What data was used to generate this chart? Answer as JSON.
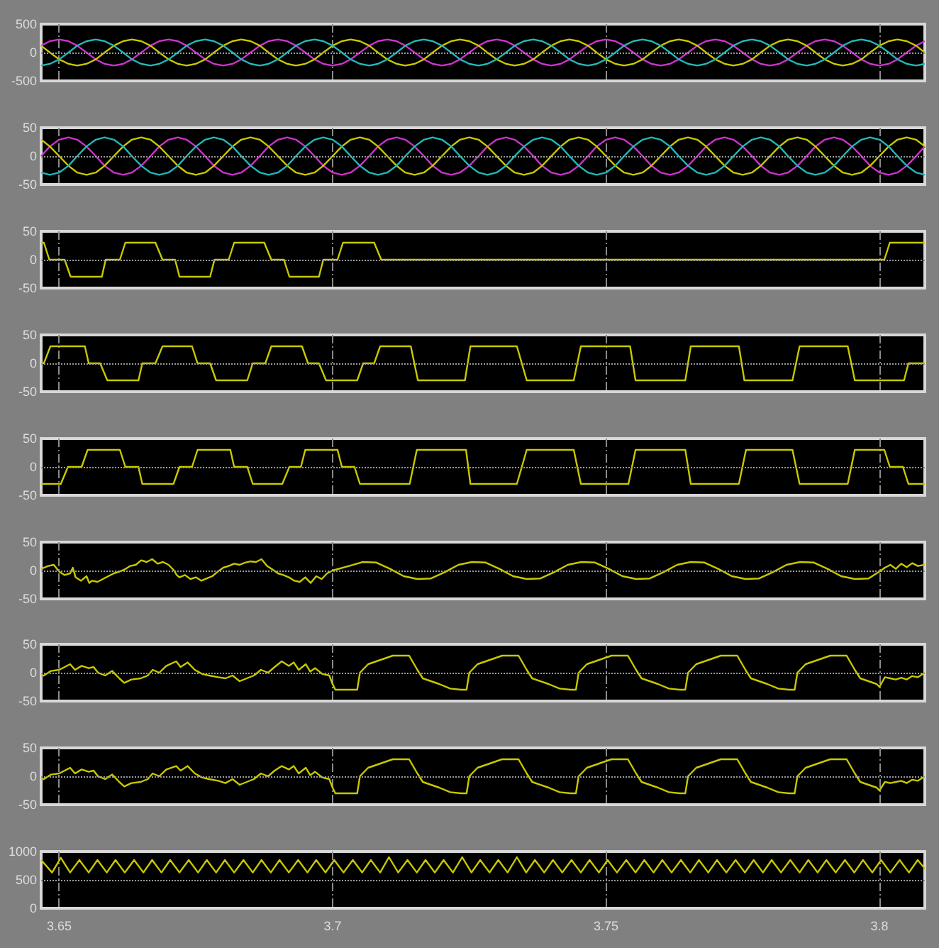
{
  "chart_data": [
    {
      "type": "line",
      "xlim": [
        3.6467,
        3.8083
      ],
      "xticks": [
        3.65,
        3.7,
        3.75,
        3.8
      ],
      "ylim": [
        -500,
        500
      ],
      "yticks": [
        -500,
        0,
        500
      ],
      "grid": "x",
      "tick_labels": "y",
      "ref_lines": [
        {
          "axis": "y",
          "value": 0,
          "color": "#9a9a9a",
          "line_style": "dotted"
        }
      ],
      "x": [
        3.6467,
        3.6483,
        3.65,
        3.6517,
        3.6533,
        3.655,
        3.6567,
        3.6583,
        3.66,
        3.6617,
        3.6633,
        3.665,
        3.6667,
        3.6683,
        3.67,
        3.6717,
        3.6733,
        3.675,
        3.6767,
        3.6783,
        3.68,
        3.6817,
        3.6833,
        3.685,
        3.6867,
        3.6883,
        3.69,
        3.6917,
        3.6933,
        3.695,
        3.6967,
        3.6983,
        3.7,
        3.7017,
        3.7033,
        3.705,
        3.7067,
        3.7083,
        3.71,
        3.7117,
        3.7133,
        3.715,
        3.7167,
        3.7183,
        3.72,
        3.7217,
        3.7233,
        3.725,
        3.7267,
        3.7283,
        3.73,
        3.7317,
        3.7333,
        3.735,
        3.7367,
        3.7383,
        3.74,
        3.7417,
        3.7433,
        3.745,
        3.7467,
        3.7483,
        3.75,
        3.7517,
        3.7533,
        3.755,
        3.7567,
        3.7583,
        3.76,
        3.7617,
        3.7633,
        3.765,
        3.7667,
        3.7683,
        3.77,
        3.7717,
        3.7733,
        3.775,
        3.7767,
        3.7783,
        3.78,
        3.7817,
        3.7833,
        3.785,
        3.7867,
        3.7883,
        3.79,
        3.7917,
        3.7933,
        3.795,
        3.7967,
        3.7983,
        3.8,
        3.8017,
        3.8033,
        3.805,
        3.8067,
        3.8083
      ],
      "series": [
        {
          "color": "#cc33cc",
          "values": [
            120,
            200,
            230,
            200,
            120,
            0,
            -120,
            -200,
            -230,
            -200,
            -120,
            0,
            120,
            200,
            230,
            200,
            120,
            0,
            -120,
            -200,
            -230,
            -200,
            -120,
            0,
            120,
            200,
            230,
            200,
            120,
            0,
            -120,
            -200,
            -230,
            -200,
            -120,
            0,
            120,
            200,
            230,
            200,
            120,
            0,
            -120,
            -200,
            -230,
            -200,
            -120,
            0,
            120,
            200,
            230,
            200,
            120,
            0,
            -120,
            -200,
            -230,
            -200,
            -120,
            0,
            120,
            200,
            230,
            200,
            120,
            0,
            -120,
            -200,
            -230,
            -200,
            -120,
            0,
            120,
            200,
            230,
            200,
            120,
            0,
            -120,
            -200,
            -230,
            -200,
            -120,
            0,
            120,
            200,
            230,
            200,
            120,
            0,
            -120,
            -200,
            -230,
            -200,
            -120,
            0,
            120,
            200
          ]
        },
        {
          "color": "#c8c800",
          "values": [
            120,
            0,
            -120,
            -200,
            -230,
            -200,
            -120,
            0,
            120,
            200,
            230,
            200,
            120,
            0,
            -120,
            -200,
            -230,
            -200,
            -120,
            0,
            120,
            200,
            230,
            200,
            120,
            0,
            -120,
            -200,
            -230,
            -200,
            -120,
            0,
            120,
            200,
            230,
            200,
            120,
            0,
            -120,
            -200,
            -230,
            -200,
            -120,
            0,
            120,
            200,
            230,
            200,
            120,
            0,
            -120,
            -200,
            -230,
            -200,
            -120,
            0,
            120,
            200,
            230,
            200,
            120,
            0,
            -120,
            -200,
            -230,
            -200,
            -120,
            0,
            120,
            200,
            230,
            200,
            120,
            0,
            -120,
            -200,
            -230,
            -200,
            -120,
            0,
            120,
            200,
            230,
            200,
            120,
            0,
            -120,
            -200,
            -230,
            -200,
            -120,
            0,
            120,
            200,
            230,
            200,
            120,
            0
          ]
        },
        {
          "color": "#22b8b8",
          "values": [
            -230,
            -200,
            -120,
            0,
            120,
            200,
            230,
            200,
            120,
            0,
            -120,
            -200,
            -230,
            -200,
            -120,
            0,
            120,
            200,
            230,
            200,
            120,
            0,
            -120,
            -200,
            -230,
            -200,
            -120,
            0,
            120,
            200,
            230,
            200,
            120,
            0,
            -120,
            -200,
            -230,
            -200,
            -120,
            0,
            120,
            200,
            230,
            200,
            120,
            0,
            -120,
            -200,
            -230,
            -200,
            -120,
            0,
            120,
            200,
            230,
            200,
            120,
            0,
            -120,
            -200,
            -230,
            -200,
            -120,
            0,
            120,
            200,
            230,
            200,
            120,
            0,
            -120,
            -200,
            -230,
            -200,
            -120,
            0,
            120,
            200,
            230,
            200,
            120,
            0,
            -120,
            -200,
            -230,
            -200,
            -120,
            0,
            120,
            200,
            230,
            200,
            120,
            0,
            -120,
            -200,
            -230,
            -200
          ]
        }
      ]
    },
    {
      "type": "line",
      "xlim": [
        3.6467,
        3.8083
      ],
      "xticks": [
        3.65,
        3.7,
        3.75,
        3.8
      ],
      "ylim": [
        -50,
        50
      ],
      "yticks": [
        -50,
        0,
        50
      ],
      "grid": "x",
      "tick_labels": "y",
      "ref_lines": [
        {
          "axis": "y",
          "value": 0,
          "color": "#9a9a9a",
          "line_style": "dotted"
        }
      ],
      "x": [
        3.6467,
        3.6483,
        3.65,
        3.6517,
        3.6533,
        3.655,
        3.6567,
        3.6583,
        3.66,
        3.6617,
        3.6633,
        3.665,
        3.6667,
        3.6683,
        3.67,
        3.6717,
        3.6733,
        3.675,
        3.6767,
        3.6783,
        3.68,
        3.6817,
        3.6833,
        3.685,
        3.6867,
        3.6883,
        3.69,
        3.6917,
        3.6933,
        3.695,
        3.6967,
        3.6983,
        3.7,
        3.7017,
        3.7033,
        3.705,
        3.7067,
        3.7083,
        3.71,
        3.7117,
        3.7133,
        3.715,
        3.7167,
        3.7183,
        3.72,
        3.7217,
        3.7233,
        3.725,
        3.7267,
        3.7283,
        3.73,
        3.7317,
        3.7333,
        3.735,
        3.7367,
        3.7383,
        3.74,
        3.7417,
        3.7433,
        3.745,
        3.7467,
        3.7483,
        3.75,
        3.7517,
        3.7533,
        3.755,
        3.7567,
        3.7583,
        3.76,
        3.7617,
        3.7633,
        3.765,
        3.7667,
        3.7683,
        3.77,
        3.7717,
        3.7733,
        3.775,
        3.7767,
        3.7783,
        3.78,
        3.7817,
        3.7833,
        3.785,
        3.7867,
        3.7883,
        3.79,
        3.7917,
        3.7933,
        3.795,
        3.7967,
        3.7983,
        3.8,
        3.8017,
        3.8033,
        3.805,
        3.8067,
        3.8083
      ],
      "series": [
        {
          "color": "#cc33cc",
          "values": [
            0,
            17,
            29,
            33,
            29,
            17,
            0,
            -17,
            -29,
            -33,
            -29,
            -17,
            0,
            17,
            29,
            33,
            29,
            17,
            0,
            -17,
            -29,
            -33,
            -29,
            -17,
            0,
            17,
            29,
            33,
            29,
            17,
            0,
            -17,
            -29,
            -33,
            -29,
            -17,
            0,
            17,
            29,
            33,
            29,
            17,
            0,
            -17,
            -29,
            -33,
            -29,
            -17,
            0,
            17,
            29,
            33,
            29,
            17,
            0,
            -17,
            -29,
            -33,
            -29,
            -17,
            0,
            17,
            29,
            33,
            29,
            17,
            0,
            -17,
            -29,
            -33,
            -29,
            -17,
            0,
            17,
            29,
            33,
            29,
            17,
            0,
            -17,
            -29,
            -33,
            -29,
            -17,
            0,
            17,
            29,
            33,
            29,
            17,
            0,
            -17,
            -29,
            -33,
            -29,
            -17,
            0,
            17
          ]
        },
        {
          "color": "#c8c800",
          "values": [
            29,
            17,
            0,
            -17,
            -29,
            -33,
            -29,
            -17,
            0,
            17,
            29,
            33,
            29,
            17,
            0,
            -17,
            -29,
            -33,
            -29,
            -17,
            0,
            17,
            29,
            33,
            29,
            17,
            0,
            -17,
            -29,
            -33,
            -29,
            -17,
            0,
            17,
            29,
            33,
            29,
            17,
            0,
            -17,
            -29,
            -33,
            -29,
            -17,
            0,
            17,
            29,
            33,
            29,
            17,
            0,
            -17,
            -29,
            -33,
            -29,
            -17,
            0,
            17,
            29,
            33,
            29,
            17,
            0,
            -17,
            -29,
            -33,
            -29,
            -17,
            0,
            17,
            29,
            33,
            29,
            17,
            0,
            -17,
            -29,
            -33,
            -29,
            -17,
            0,
            17,
            29,
            33,
            29,
            17,
            0,
            -17,
            -29,
            -33,
            -29,
            -17,
            0,
            17,
            29,
            33,
            29,
            17
          ]
        },
        {
          "color": "#22b8b8",
          "values": [
            -29,
            -33,
            -29,
            -17,
            0,
            17,
            29,
            33,
            29,
            17,
            0,
            -17,
            -29,
            -33,
            -29,
            -17,
            0,
            17,
            29,
            33,
            29,
            17,
            0,
            -17,
            -29,
            -33,
            -29,
            -17,
            0,
            17,
            29,
            33,
            29,
            17,
            0,
            -17,
            -29,
            -33,
            -29,
            -17,
            0,
            17,
            29,
            33,
            29,
            17,
            0,
            -17,
            -29,
            -33,
            -29,
            -17,
            0,
            17,
            29,
            33,
            29,
            17,
            0,
            -17,
            -29,
            -33,
            -29,
            -17,
            0,
            17,
            29,
            33,
            29,
            17,
            0,
            -17,
            -29,
            -33,
            -29,
            -17,
            0,
            17,
            29,
            33,
            29,
            17,
            0,
            -17,
            -29,
            -33,
            -29,
            -17,
            0,
            17,
            29,
            33,
            29,
            17,
            0,
            -17,
            -29,
            -33
          ]
        }
      ]
    },
    {
      "type": "line",
      "xlim": [
        3.6467,
        3.8083
      ],
      "xticks": [
        3.65,
        3.7,
        3.75,
        3.8
      ],
      "ylim": [
        -50,
        50
      ],
      "yticks": [
        -50,
        0,
        50
      ],
      "grid": "x",
      "tick_labels": "y",
      "ref_lines": [
        {
          "axis": "y",
          "value": 0,
          "color": "#9a9a9a",
          "line_style": "dotted"
        }
      ],
      "x": [
        3.6467,
        3.6472,
        3.6482,
        3.651,
        3.6521,
        3.6578,
        3.6585,
        3.6611,
        3.6621,
        3.6676,
        3.6689,
        3.6712,
        3.672,
        3.6776,
        3.6784,
        3.681,
        3.682,
        3.6875,
        3.6888,
        3.6911,
        3.6921,
        3.6975,
        3.6983,
        3.7009,
        3.7019,
        3.7076,
        3.7089,
        3.8009,
        3.8019,
        3.8083
      ],
      "series": [
        {
          "color": "#c8c800",
          "values": [
            30,
            30,
            0,
            0,
            -30,
            -30,
            0,
            0,
            30,
            30,
            0,
            0,
            -30,
            -30,
            0,
            0,
            30,
            30,
            0,
            0,
            -30,
            -30,
            0,
            0,
            30,
            30,
            0,
            0,
            30,
            30
          ]
        }
      ]
    },
    {
      "type": "line",
      "xlim": [
        3.6467,
        3.8083
      ],
      "xticks": [
        3.65,
        3.7,
        3.75,
        3.8
      ],
      "ylim": [
        -50,
        50
      ],
      "yticks": [
        -50,
        0,
        50
      ],
      "grid": "x",
      "tick_labels": "y",
      "ref_lines": [
        {
          "axis": "y",
          "value": 0,
          "color": "#9a9a9a",
          "line_style": "dotted"
        }
      ],
      "x": [
        3.6467,
        3.6472,
        3.6484,
        3.6547,
        3.6554,
        3.6575,
        3.6588,
        3.6645,
        3.6652,
        3.6676,
        3.6689,
        3.6743,
        3.6753,
        3.6776,
        3.6787,
        3.6844,
        3.6854,
        3.6877,
        3.6888,
        3.6944,
        3.6955,
        3.6975,
        3.6988,
        3.7045,
        3.7056,
        3.7076,
        3.7087,
        3.7143,
        3.7156,
        3.7242,
        3.7252,
        3.7337,
        3.7355,
        3.7441,
        3.7454,
        3.7544,
        3.7554,
        3.7645,
        3.7655,
        3.7743,
        3.7753,
        3.7841,
        3.7854,
        3.7942,
        3.7955,
        3.8045,
        3.8053,
        3.8083
      ],
      "series": [
        {
          "color": "#c8c800",
          "values": [
            0,
            0,
            30,
            30,
            0,
            0,
            -30,
            -30,
            0,
            0,
            30,
            30,
            0,
            0,
            -30,
            -30,
            0,
            0,
            30,
            30,
            0,
            0,
            -30,
            -30,
            0,
            0,
            30,
            30,
            -30,
            -30,
            30,
            30,
            -30,
            -30,
            30,
            30,
            -30,
            -30,
            30,
            30,
            -30,
            -30,
            30,
            30,
            -30,
            -30,
            0,
            0
          ]
        }
      ]
    },
    {
      "type": "line",
      "xlim": [
        3.6467,
        3.8083
      ],
      "xticks": [
        3.65,
        3.7,
        3.75,
        3.8
      ],
      "ylim": [
        -50,
        50
      ],
      "yticks": [
        -50,
        0,
        50
      ],
      "grid": "x",
      "tick_labels": "y",
      "ref_lines": [
        {
          "axis": "y",
          "value": 0,
          "color": "#9a9a9a",
          "line_style": "dotted"
        }
      ],
      "x": [
        3.6467,
        3.6503,
        3.6516,
        3.6541,
        3.6552,
        3.6611,
        3.6621,
        3.6645,
        3.6652,
        3.6709,
        3.672,
        3.6743,
        3.6753,
        3.6813,
        3.682,
        3.6844,
        3.6854,
        3.6908,
        3.6921,
        3.6942,
        3.695,
        3.7009,
        3.7017,
        3.704,
        3.705,
        3.7141,
        3.7154,
        3.7244,
        3.7252,
        3.7337,
        3.7355,
        3.7441,
        3.7454,
        3.7541,
        3.7554,
        3.7645,
        3.7655,
        3.7743,
        3.7756,
        3.7841,
        3.7854,
        3.7942,
        3.7955,
        3.8009,
        3.8019,
        3.8043,
        3.8053,
        3.8083
      ],
      "series": [
        {
          "color": "#c8c800",
          "values": [
            -30,
            -30,
            0,
            0,
            30,
            30,
            0,
            0,
            -30,
            -30,
            0,
            0,
            30,
            30,
            0,
            0,
            -30,
            -30,
            0,
            0,
            30,
            30,
            0,
            0,
            -30,
            -30,
            30,
            30,
            -30,
            -30,
            30,
            30,
            -30,
            -30,
            30,
            30,
            -30,
            -30,
            30,
            30,
            -30,
            -30,
            30,
            30,
            0,
            0,
            -30,
            -30
          ]
        }
      ]
    },
    {
      "type": "line",
      "xlim": [
        3.6467,
        3.8083
      ],
      "xticks": [
        3.65,
        3.7,
        3.75,
        3.8
      ],
      "ylim": [
        -50,
        50
      ],
      "yticks": [
        -50,
        0,
        50
      ],
      "grid": "x",
      "tick_labels": "y",
      "ref_lines": [
        {
          "axis": "y",
          "value": 0,
          "color": "#9a9a9a",
          "line_style": "dotted"
        }
      ],
      "x": [
        3.6467,
        3.648,
        3.649,
        3.65,
        3.651,
        3.652,
        3.6525,
        3.653,
        3.654,
        3.655,
        3.6555,
        3.656,
        3.657,
        3.658,
        3.659,
        3.66,
        3.661,
        3.662,
        3.663,
        3.664,
        3.665,
        3.666,
        3.667,
        3.668,
        3.669,
        3.67,
        3.671,
        3.6715,
        3.672,
        3.673,
        3.674,
        3.675,
        3.676,
        3.677,
        3.678,
        3.679,
        3.68,
        3.681,
        3.682,
        3.683,
        3.684,
        3.685,
        3.686,
        3.687,
        3.688,
        3.689,
        3.69,
        3.691,
        3.692,
        3.693,
        3.694,
        3.695,
        3.696,
        3.697,
        3.698,
        3.699,
        3.7,
        3.703,
        3.7055,
        3.708,
        3.7105,
        3.713,
        3.7155,
        3.718,
        3.7205,
        3.723,
        3.7255,
        3.728,
        3.7305,
        3.733,
        3.7355,
        3.738,
        3.7405,
        3.743,
        3.7455,
        3.748,
        3.7505,
        3.753,
        3.7555,
        3.758,
        3.7605,
        3.763,
        3.7655,
        3.768,
        3.7705,
        3.773,
        3.7755,
        3.778,
        3.7805,
        3.783,
        3.7855,
        3.788,
        3.7905,
        3.793,
        3.7955,
        3.798,
        3.8,
        3.801,
        3.802,
        3.803,
        3.804,
        3.805,
        3.806,
        3.807,
        3.8083
      ],
      "series": [
        {
          "color": "#c8c800",
          "values": [
            3,
            8,
            10,
            -2,
            -8,
            -5,
            5,
            -12,
            -18,
            -10,
            -22,
            -18,
            -20,
            -15,
            -10,
            -5,
            -2,
            2,
            8,
            10,
            18,
            15,
            20,
            12,
            15,
            10,
            0,
            -8,
            -12,
            -8,
            -15,
            -12,
            -18,
            -14,
            -10,
            -2,
            5,
            8,
            12,
            10,
            14,
            16,
            15,
            20,
            8,
            2,
            -5,
            -8,
            -12,
            -18,
            -20,
            -12,
            -22,
            -10,
            -15,
            -5,
            0,
            8,
            15,
            14,
            3,
            -10,
            -15,
            -14,
            -3,
            10,
            15,
            14,
            3,
            -10,
            -15,
            -14,
            -3,
            10,
            15,
            14,
            3,
            -10,
            -15,
            -14,
            -3,
            10,
            15,
            14,
            3,
            -10,
            -15,
            -14,
            -3,
            10,
            15,
            14,
            3,
            -10,
            -15,
            -14,
            -2,
            5,
            10,
            3,
            12,
            6,
            13,
            8,
            10
          ]
        }
      ]
    },
    {
      "type": "line",
      "xlim": [
        3.6467,
        3.8083
      ],
      "xticks": [
        3.65,
        3.7,
        3.75,
        3.8
      ],
      "ylim": [
        -50,
        50
      ],
      "yticks": [
        -50,
        0,
        50
      ],
      "grid": "x",
      "tick_labels": "y",
      "ref_lines": [
        {
          "axis": "y",
          "value": 0,
          "color": "#9a9a9a",
          "line_style": "dotted"
        }
      ],
      "x": [
        3.6467,
        3.6472,
        3.6485,
        3.65,
        3.652,
        3.6529,
        3.6541,
        3.6554,
        3.6563,
        3.6571,
        3.6584,
        3.6597,
        3.661,
        3.6619,
        3.6632,
        3.6649,
        3.6662,
        3.6671,
        3.6683,
        3.6696,
        3.6714,
        3.6722,
        3.6735,
        3.6748,
        3.6761,
        3.6774,
        3.6791,
        3.6804,
        3.6817,
        3.683,
        3.6843,
        3.6856,
        3.6869,
        3.6882,
        3.6894,
        3.6907,
        3.692,
        3.6929,
        3.6938,
        3.6951,
        3.6959,
        3.6968,
        3.6981,
        3.6994,
        3.7,
        3.7005,
        3.7045,
        3.705,
        3.7065,
        3.7095,
        3.711,
        3.714,
        3.7155,
        3.7165,
        3.7195,
        3.7215,
        3.7235,
        3.7245,
        3.725,
        3.7265,
        3.7295,
        3.731,
        3.734,
        3.7355,
        3.7365,
        3.7395,
        3.7415,
        3.7435,
        3.7445,
        3.745,
        3.7465,
        3.7495,
        3.751,
        3.754,
        3.7555,
        3.7565,
        3.7595,
        3.7615,
        3.7635,
        3.7645,
        3.765,
        3.7665,
        3.7695,
        3.771,
        3.774,
        3.7755,
        3.7765,
        3.7795,
        3.7815,
        3.7835,
        3.7845,
        3.785,
        3.7865,
        3.7895,
        3.791,
        3.794,
        3.7955,
        3.7965,
        3.7995,
        3.8,
        3.801,
        3.802,
        3.803,
        3.804,
        3.805,
        3.806,
        3.807,
        3.8083
      ],
      "series": [
        {
          "color": "#c8c800",
          "values": [
            -5,
            -5,
            3,
            5,
            15,
            5,
            12,
            8,
            10,
            0,
            -5,
            3,
            -10,
            -18,
            -12,
            -10,
            -5,
            5,
            0,
            12,
            20,
            10,
            18,
            5,
            -2,
            -5,
            -8,
            -10,
            -5,
            -15,
            -10,
            -5,
            5,
            0,
            10,
            20,
            12,
            18,
            5,
            15,
            2,
            8,
            -2,
            -5,
            -20,
            -30,
            -30,
            0,
            15,
            25,
            30,
            30,
            5,
            -10,
            -20,
            -28,
            -30,
            -30,
            0,
            15,
            25,
            30,
            30,
            5,
            -10,
            -20,
            -28,
            -30,
            -30,
            0,
            15,
            25,
            30,
            30,
            5,
            -10,
            -20,
            -28,
            -30,
            -30,
            0,
            15,
            25,
            30,
            30,
            5,
            -10,
            -20,
            -28,
            -30,
            -30,
            0,
            15,
            25,
            30,
            30,
            5,
            -10,
            -20,
            -25,
            -8,
            -10,
            -12,
            -9,
            -12,
            -6,
            -8,
            0
          ]
        }
      ]
    },
    {
      "type": "line",
      "xlim": [
        3.6467,
        3.8083
      ],
      "xticks": [
        3.65,
        3.7,
        3.75,
        3.8
      ],
      "ylim": [
        -50,
        50
      ],
      "yticks": [
        -50,
        0,
        50
      ],
      "grid": "x",
      "tick_labels": "y",
      "ref_lines": [
        {
          "axis": "y",
          "value": 0,
          "color": "#9a9a9a",
          "line_style": "dotted"
        }
      ],
      "x": [
        3.6467,
        3.6472,
        3.6485,
        3.65,
        3.652,
        3.6529,
        3.6541,
        3.6554,
        3.6563,
        3.6571,
        3.6584,
        3.6597,
        3.661,
        3.6619,
        3.6632,
        3.6649,
        3.6662,
        3.6671,
        3.6683,
        3.6696,
        3.6714,
        3.6722,
        3.6735,
        3.6748,
        3.6761,
        3.6774,
        3.6791,
        3.6804,
        3.6817,
        3.683,
        3.6843,
        3.6856,
        3.6869,
        3.6882,
        3.6894,
        3.6907,
        3.692,
        3.6929,
        3.6938,
        3.6951,
        3.6959,
        3.6968,
        3.6981,
        3.6994,
        3.7,
        3.7005,
        3.7045,
        3.705,
        3.7065,
        3.7095,
        3.711,
        3.714,
        3.7155,
        3.7165,
        3.7195,
        3.7215,
        3.7235,
        3.7245,
        3.725,
        3.7265,
        3.7295,
        3.731,
        3.734,
        3.7355,
        3.7365,
        3.7395,
        3.7415,
        3.7435,
        3.7445,
        3.745,
        3.7465,
        3.7495,
        3.751,
        3.754,
        3.7555,
        3.7565,
        3.7595,
        3.7615,
        3.7635,
        3.7645,
        3.765,
        3.7665,
        3.7695,
        3.771,
        3.774,
        3.7755,
        3.7765,
        3.7795,
        3.7815,
        3.7835,
        3.7845,
        3.785,
        3.7865,
        3.7895,
        3.791,
        3.794,
        3.7955,
        3.7965,
        3.7995,
        3.8,
        3.801,
        3.802,
        3.803,
        3.804,
        3.805,
        3.806,
        3.807,
        3.8083
      ],
      "series": [
        {
          "color": "#c8c800",
          "values": [
            -5,
            -5,
            3,
            5,
            15,
            5,
            12,
            8,
            10,
            0,
            -5,
            3,
            -10,
            -18,
            -12,
            -10,
            -5,
            5,
            0,
            12,
            18,
            10,
            18,
            5,
            -2,
            -5,
            -8,
            -12,
            -5,
            -15,
            -10,
            -5,
            5,
            0,
            10,
            18,
            12,
            18,
            5,
            15,
            2,
            8,
            -2,
            -5,
            -20,
            -30,
            -30,
            0,
            15,
            25,
            30,
            30,
            5,
            -10,
            -20,
            -28,
            -30,
            -30,
            0,
            15,
            25,
            30,
            30,
            5,
            -10,
            -20,
            -28,
            -30,
            -30,
            0,
            15,
            25,
            30,
            30,
            5,
            -10,
            -20,
            -28,
            -30,
            -30,
            0,
            15,
            25,
            30,
            30,
            5,
            -10,
            -20,
            -28,
            -30,
            -30,
            0,
            15,
            25,
            30,
            30,
            5,
            -10,
            -20,
            -25,
            -10,
            -12,
            -10,
            -8,
            -12,
            -6,
            -8,
            0
          ]
        }
      ]
    },
    {
      "type": "line",
      "xlim": [
        3.6467,
        3.8083
      ],
      "xticks": [
        3.65,
        3.7,
        3.75,
        3.8
      ],
      "ylim": [
        0,
        1000
      ],
      "yticks": [
        0,
        500,
        1000
      ],
      "grid": "x",
      "ref_lines": [
        {
          "axis": "y",
          "value": 500,
          "color": "#9a9a9a",
          "line_style": "dotted"
        }
      ],
      "x": [
        3.6467,
        3.6487,
        3.6503,
        3.652,
        3.6537,
        3.6554,
        3.657,
        3.6587,
        3.6603,
        3.662,
        3.6637,
        3.6654,
        3.667,
        3.6687,
        3.6703,
        3.672,
        3.6737,
        3.6754,
        3.677,
        3.6787,
        3.6803,
        3.682,
        3.6837,
        3.6854,
        3.687,
        3.6887,
        3.6903,
        3.692,
        3.6937,
        3.6954,
        3.697,
        3.6987,
        3.7003,
        3.702,
        3.7037,
        3.7054,
        3.707,
        3.7087,
        3.7103,
        3.712,
        3.7137,
        3.7154,
        3.717,
        3.7187,
        3.7203,
        3.722,
        3.7237,
        3.7254,
        3.727,
        3.7287,
        3.7303,
        3.732,
        3.7337,
        3.7354,
        3.737,
        3.7387,
        3.7403,
        3.742,
        3.7437,
        3.7454,
        3.747,
        3.7487,
        3.7503,
        3.752,
        3.7537,
        3.7554,
        3.757,
        3.7587,
        3.7603,
        3.762,
        3.7637,
        3.7654,
        3.767,
        3.7687,
        3.7703,
        3.772,
        3.7737,
        3.7754,
        3.777,
        3.7787,
        3.7803,
        3.782,
        3.7837,
        3.7854,
        3.787,
        3.7887,
        3.7903,
        3.792,
        3.7937,
        3.7954,
        3.797,
        3.7987,
        3.8003,
        3.802,
        3.8037,
        3.8054,
        3.807,
        3.8083
      ],
      "series": [
        {
          "color": "#c8c800",
          "values": [
            850,
            630,
            890,
            630,
            850,
            630,
            850,
            630,
            850,
            630,
            850,
            630,
            850,
            630,
            850,
            630,
            850,
            630,
            850,
            630,
            850,
            630,
            850,
            630,
            850,
            630,
            850,
            630,
            850,
            630,
            850,
            630,
            850,
            630,
            850,
            630,
            850,
            630,
            900,
            630,
            850,
            630,
            850,
            630,
            850,
            630,
            900,
            630,
            850,
            630,
            850,
            630,
            900,
            630,
            850,
            630,
            850,
            630,
            850,
            630,
            850,
            630,
            850,
            630,
            850,
            630,
            850,
            630,
            850,
            630,
            850,
            630,
            850,
            630,
            850,
            630,
            850,
            630,
            850,
            630,
            850,
            630,
            850,
            630,
            850,
            630,
            850,
            630,
            850,
            630,
            850,
            630,
            850,
            630,
            850,
            630,
            850,
            700
          ]
        }
      ]
    }
  ]
}
